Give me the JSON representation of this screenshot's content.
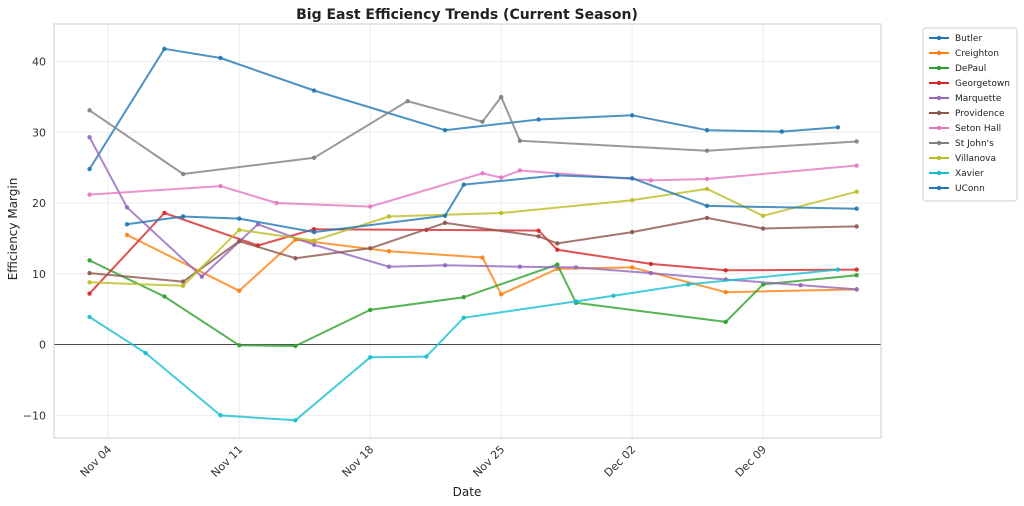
{
  "chart_data": {
    "type": "line",
    "title": "Big East Efficiency Trends (Current Season)",
    "xlabel": "Date",
    "ylabel": "Efficiency Margin",
    "x_unit": "days since Nov 01",
    "xlim": [
      1.1,
      45.3
    ],
    "ylim": [
      -13.2,
      45.3
    ],
    "grid": true,
    "legend_position": "outside-top-right",
    "x_ticks": [
      {
        "value": 4,
        "label": "Nov 04"
      },
      {
        "value": 11,
        "label": "Nov 11"
      },
      {
        "value": 18,
        "label": "Nov 18"
      },
      {
        "value": 25,
        "label": "Nov 25"
      },
      {
        "value": 32,
        "label": "Dec 02"
      },
      {
        "value": 39,
        "label": "Dec 09"
      }
    ],
    "y_ticks": [
      {
        "value": -10,
        "label": "−10"
      },
      {
        "value": 0,
        "label": "0"
      },
      {
        "value": 10,
        "label": "10"
      },
      {
        "value": 20,
        "label": "20"
      },
      {
        "value": 30,
        "label": "30"
      },
      {
        "value": 40,
        "label": "40"
      }
    ],
    "series": [
      {
        "name": "Butler",
        "color": "#1f77b4",
        "x": [
          3,
          7,
          10,
          15,
          22,
          27,
          32,
          36,
          40,
          43
        ],
        "y": [
          24.8,
          41.8,
          40.5,
          35.9,
          30.3,
          31.8,
          32.4,
          30.3,
          30.1,
          30.7
        ]
      },
      {
        "name": "Creighton",
        "color": "#ff7f0e",
        "x": [
          5,
          11,
          14,
          19,
          24,
          25,
          28,
          32,
          37,
          44
        ],
        "y": [
          15.5,
          7.6,
          14.8,
          13.2,
          12.3,
          7.1,
          10.7,
          10.9,
          7.4,
          7.8
        ]
      },
      {
        "name": "DePaul",
        "color": "#2ca02c",
        "x": [
          3,
          7,
          11,
          14,
          18,
          23,
          28,
          29,
          37,
          39,
          44
        ],
        "y": [
          11.9,
          6.8,
          -0.1,
          -0.2,
          4.9,
          6.7,
          11.3,
          5.9,
          3.2,
          8.5,
          9.8
        ]
      },
      {
        "name": "Georgetown",
        "color": "#d62728",
        "x": [
          3,
          7,
          12,
          15,
          21,
          27,
          28,
          33,
          37,
          44
        ],
        "y": [
          7.2,
          18.6,
          14.0,
          16.3,
          16.2,
          16.1,
          13.4,
          11.4,
          10.5,
          10.6
        ]
      },
      {
        "name": "Marquette",
        "color": "#9467bd",
        "x": [
          3,
          5,
          9,
          12,
          15,
          19,
          22,
          26,
          29,
          33,
          37,
          41,
          44
        ],
        "y": [
          29.3,
          19.4,
          9.6,
          17.0,
          14.1,
          11.0,
          11.2,
          11.0,
          10.9,
          10.1,
          9.2,
          8.4,
          7.8
        ]
      },
      {
        "name": "Providence",
        "color": "#8c564b",
        "x": [
          3,
          8,
          11,
          14,
          18,
          22,
          27,
          28,
          32,
          36,
          39,
          44
        ],
        "y": [
          10.1,
          8.9,
          14.6,
          12.2,
          13.6,
          17.2,
          15.3,
          14.3,
          15.9,
          17.9,
          16.4,
          16.7
        ]
      },
      {
        "name": "Seton Hall",
        "color": "#e377c2",
        "x": [
          3,
          10,
          13,
          18,
          24,
          25,
          26,
          33,
          36,
          44
        ],
        "y": [
          21.2,
          22.4,
          20.0,
          19.5,
          24.2,
          23.6,
          24.6,
          23.2,
          23.4,
          25.3
        ]
      },
      {
        "name": "St John's",
        "color": "#7f7f7f",
        "x": [
          3,
          8,
          15,
          20,
          24,
          25,
          26,
          36,
          44
        ],
        "y": [
          33.1,
          24.1,
          26.4,
          34.4,
          31.5,
          35.0,
          28.8,
          27.4,
          28.7
        ]
      },
      {
        "name": "Villanova",
        "color": "#bcbd22",
        "x": [
          3,
          8,
          11,
          15,
          19,
          25,
          32,
          36,
          39,
          44
        ],
        "y": [
          8.8,
          8.3,
          16.2,
          14.7,
          18.1,
          18.6,
          20.4,
          22.0,
          18.2,
          21.6
        ]
      },
      {
        "name": "Xavier",
        "color": "#17becf",
        "x": [
          3,
          6,
          10,
          14,
          18,
          21,
          23,
          29,
          31,
          35,
          43
        ],
        "y": [
          3.9,
          -1.2,
          -10.0,
          -10.7,
          -1.8,
          -1.7,
          3.8,
          6.1,
          6.9,
          8.5,
          10.6
        ]
      },
      {
        "name": "UConn",
        "color": "#1f77b4",
        "x": [
          5,
          8,
          11,
          15,
          22,
          23,
          28,
          32,
          36,
          44
        ],
        "y": [
          17.0,
          18.1,
          17.8,
          15.9,
          18.2,
          22.6,
          23.9,
          23.5,
          19.6,
          19.2
        ]
      }
    ]
  }
}
